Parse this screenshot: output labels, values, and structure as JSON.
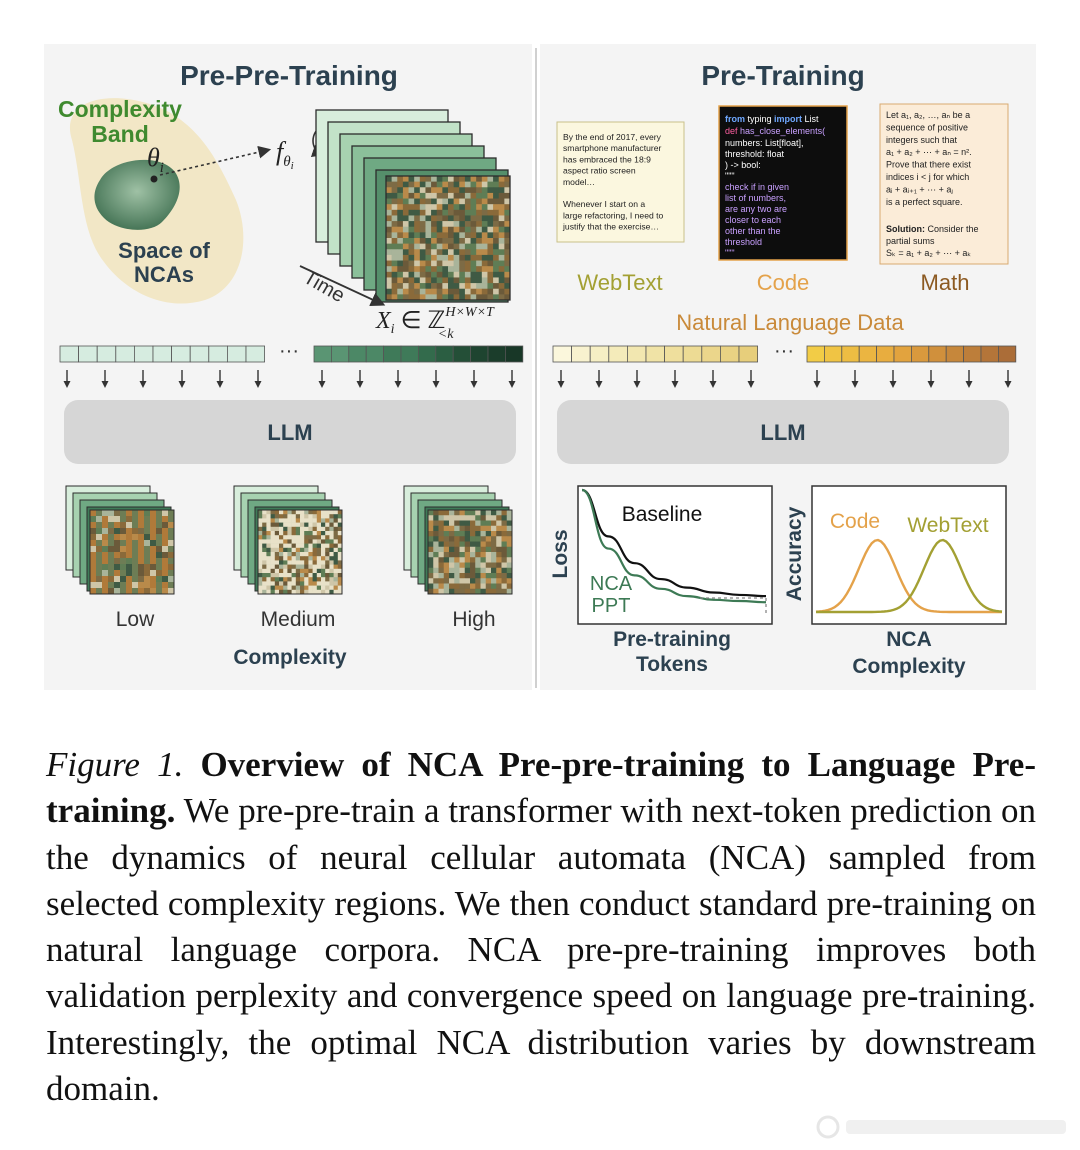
{
  "left_panel": {
    "title": "Pre-Pre-Training",
    "complexity_band_line1": "Complexity",
    "complexity_band_line2": "Band",
    "space_line1": "Space of",
    "space_line2": "NCAs",
    "time_label": "Time",
    "llm_label": "LLM",
    "complexity_levels": [
      "Low",
      "Medium",
      "High"
    ],
    "complexity_axis_label": "Complexity",
    "colors": {
      "band": "#f2e7c6",
      "green_dark": "#2f5c3f",
      "green_mid": "#5f9a73",
      "green_light": "#cde6d2"
    }
  },
  "right_panel": {
    "title": "Pre-Training",
    "webtext_card": [
      "By the end of 2017, every",
      "smartphone manufacturer",
      "has embraced the 18:9",
      "aspect ratio screen",
      "model…",
      "",
      "Whenever I start on a",
      "large refactoring, I need to",
      "justify that the exercise…"
    ],
    "code_card": {
      "line1_kw1": "from",
      "line1_mid": " typing ",
      "line1_kw2": "import",
      "line1_end": " List",
      "line2_kw": "def",
      "line2_fn": " has_close_elements(",
      "lines": [
        "    numbers: List[float],",
        "    threshold: float",
        ") -> bool:",
        "    \"\"\"",
        "    check if in given",
        "    list of numbers,",
        "    are any two are",
        "    closer to each",
        "    other than the",
        "    threshold",
        "    \"\"\""
      ]
    },
    "math_card": {
      "lines": [
        "Let a₁, a₂, …, aₙ be a",
        "sequence of positive",
        "integers such that",
        "a₁ + a₂ + ⋯ + aₙ = n².",
        "Prove that there exist",
        "indices i < j for which",
        "aᵢ + aᵢ₊₁ + ⋯ + aⱼ",
        "is a perfect square."
      ],
      "solution_label": "Solution:",
      "solution_text": " Consider the",
      "solution_lines": [
        "partial sums",
        "Sₖ = a₁ + a₂ + ⋯ + aₖ"
      ]
    },
    "domain_labels": [
      "WebText",
      "Code",
      "Math"
    ],
    "natural_language_label": "Natural Language Data",
    "llm_label": "LLM",
    "loss_chart": {
      "ylabel": "Loss",
      "xlabel_line1": "Pre-training",
      "xlabel_line2": "Tokens",
      "series": [
        {
          "name": "Baseline",
          "values": [
            1.0,
            0.62,
            0.4,
            0.27,
            0.2,
            0.16,
            0.14,
            0.13
          ]
        },
        {
          "name_line1": "NCA",
          "name_line2": "PPT",
          "values": [
            1.0,
            0.52,
            0.3,
            0.19,
            0.13,
            0.1,
            0.09,
            0.08
          ]
        }
      ]
    },
    "accuracy_chart": {
      "ylabel": "Accuracy",
      "xlabel_line1": "NCA",
      "xlabel_line2": "Complexity",
      "series": [
        {
          "name": "Code",
          "peak": 0.33
        },
        {
          "name": "WebText",
          "peak": 0.68
        }
      ]
    },
    "colors": {
      "webtext": "#a3a033",
      "code": "#e4a24a",
      "math": "#8c5a22",
      "natural": "#c98a3a",
      "nca_curve": "#3d7a55"
    }
  },
  "caption": {
    "label": "Figure 1.",
    "title": "Overview of NCA Pre-pre-training to Language Pre-training.",
    "body": "We pre-pre-train a transformer with next-token prediction on the dynamics of neural cellular automata (NCA) sampled from selected complexity regions. We then conduct standard pre-training on natural language corpora. NCA pre-pre-training improves both validation perplexity and convergence speed on language pre-training. Interestingly, the optimal NCA distribution varies by downstream domain."
  }
}
